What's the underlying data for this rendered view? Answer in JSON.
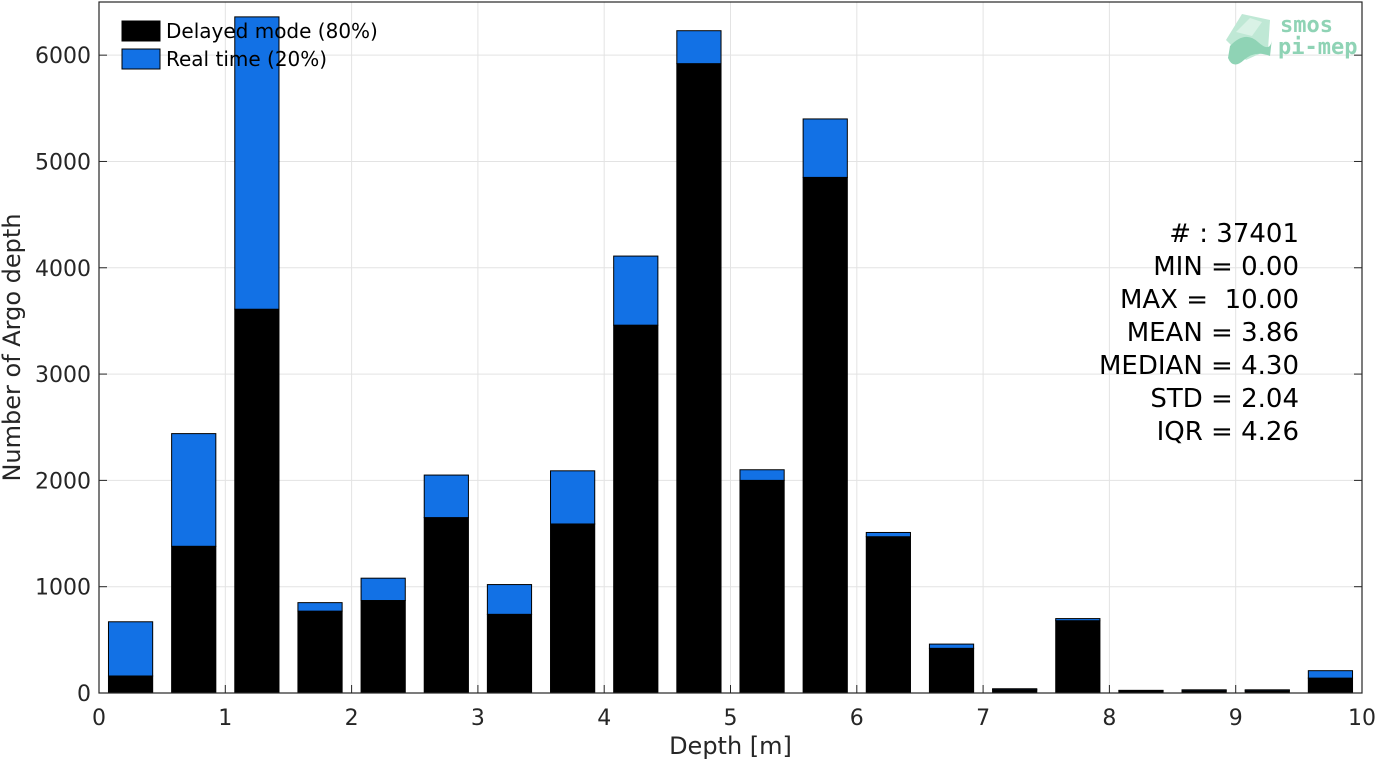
{
  "chart_data": {
    "type": "bar",
    "stacked": true,
    "bin_centers": [
      0.25,
      0.75,
      1.25,
      1.75,
      2.25,
      2.75,
      3.25,
      3.75,
      4.25,
      4.75,
      5.25,
      5.75,
      6.25,
      6.75,
      7.25,
      7.75,
      8.25,
      8.75,
      9.25,
      9.75
    ],
    "series": [
      {
        "name": "Delayed mode (80%)",
        "color": "#000000",
        "values": [
          160,
          1380,
          3610,
          770,
          870,
          1650,
          740,
          1590,
          3460,
          5920,
          2000,
          4850,
          1470,
          420,
          30,
          680,
          20,
          20,
          20,
          140
        ]
      },
      {
        "name": "Real time (20%)",
        "color": "#1271e5",
        "values": [
          510,
          1060,
          2750,
          80,
          210,
          400,
          280,
          500,
          650,
          310,
          100,
          550,
          40,
          40,
          10,
          20,
          5,
          10,
          10,
          70
        ]
      }
    ],
    "xlabel": "Depth [m]",
    "ylabel": "Number of Argo depth",
    "xlim": [
      0,
      10
    ],
    "ylim": [
      0,
      6500
    ],
    "xticks": [
      "0",
      "1",
      "2",
      "3",
      "4",
      "5",
      "6",
      "7",
      "8",
      "9",
      "10"
    ],
    "yticks": [
      "0",
      "1000",
      "2000",
      "3000",
      "4000",
      "5000",
      "6000"
    ],
    "grid": true,
    "legend_position": "top-left",
    "stats": [
      "# : 37401",
      "MIN = 0.00",
      "MAX =  10.00",
      "MEAN = 3.86",
      "MEDIAN = 4.30",
      "STD = 2.04",
      "IQR = 4.26"
    ]
  },
  "logo": {
    "line1": "smos",
    "line2": "pi-mep",
    "color": "#8fd3b5"
  }
}
